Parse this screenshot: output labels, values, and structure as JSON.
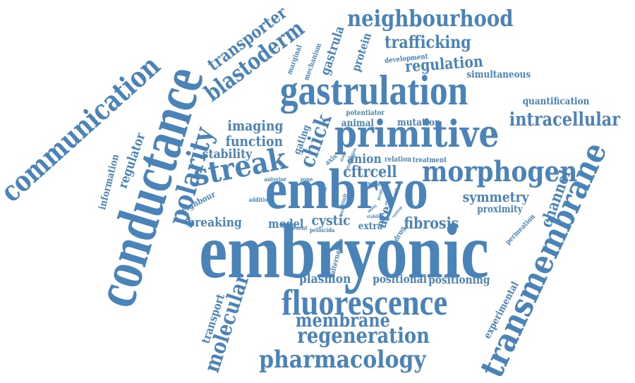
{
  "colors": {
    "word": "#4a83b7",
    "word_alt": "#4b86bb",
    "word_dark": "#4a82b6",
    "background": "#ffffff"
  },
  "words": {
    "embryonic": "embryonic",
    "conductance": "conductance",
    "embryo": "embryo",
    "gastrulation": "gastrulation",
    "primitive": "primitive",
    "fluorescence": "fluorescence",
    "transmembrane": "transmembrane",
    "streak": "streak",
    "communication": "communication",
    "morphogen": "morphogen",
    "polarity": "polarity",
    "neighbourhood": "neighbourhood",
    "pharmacology": "pharmacology",
    "regeneration": "regeneration",
    "membrane": "membrane",
    "molecular": "molecular",
    "blastoderm": "blastoderm",
    "transporter": "transporter",
    "intracellular": "intracellular",
    "chick": "chick",
    "trafficking": "trafficking",
    "regulation": "regulation",
    "channel": "channel",
    "fibrosis": "fibrosis",
    "symmetry": "symmetry",
    "breaking": "breaking",
    "cftrcell": "cftrcell",
    "function": "function",
    "imaging": "imaging",
    "stability": "stability",
    "plasmon": "plasmon",
    "positional": "positional",
    "positioning": "positioning",
    "model": "model",
    "cystic": "cystic",
    "anion": "anion",
    "regulator": "regulator",
    "transport": "transport",
    "experimental": "experimental",
    "proximity": "proximity",
    "simultaneous": "simultaneous",
    "quantification": "quantification",
    "gastrula": "gastrula",
    "protein": "protein",
    "animal": "animal",
    "mutation": "mutation",
    "area": "area",
    "extra": "extra",
    "gating": "gating",
    "information": "information",
    "neighbour": "neighbour",
    "development": "development",
    "potentiator": "potentiator",
    "marginal": "marginal",
    "mechanism": "mechanism",
    "permeation": "permeation",
    "drug": "drug",
    "alternative": "alternative",
    "axis": "axis",
    "role": "role",
    "relation": "relation",
    "treatment": "treatment",
    "anterior": "anterior",
    "zone": "zone",
    "addition": "addition",
    "present": "present",
    "pellucida": "pellucida",
    "watch": "watch",
    "result": "result",
    "stage": "stage",
    "stimulation": "stimulation",
    "many": "many",
    "profile": "profile",
    "system": "system",
    "stability_small": "stability",
    "panel": "panel",
    "concept": "concept",
    "cbmr": "cbmr",
    "line": "line"
  }
}
